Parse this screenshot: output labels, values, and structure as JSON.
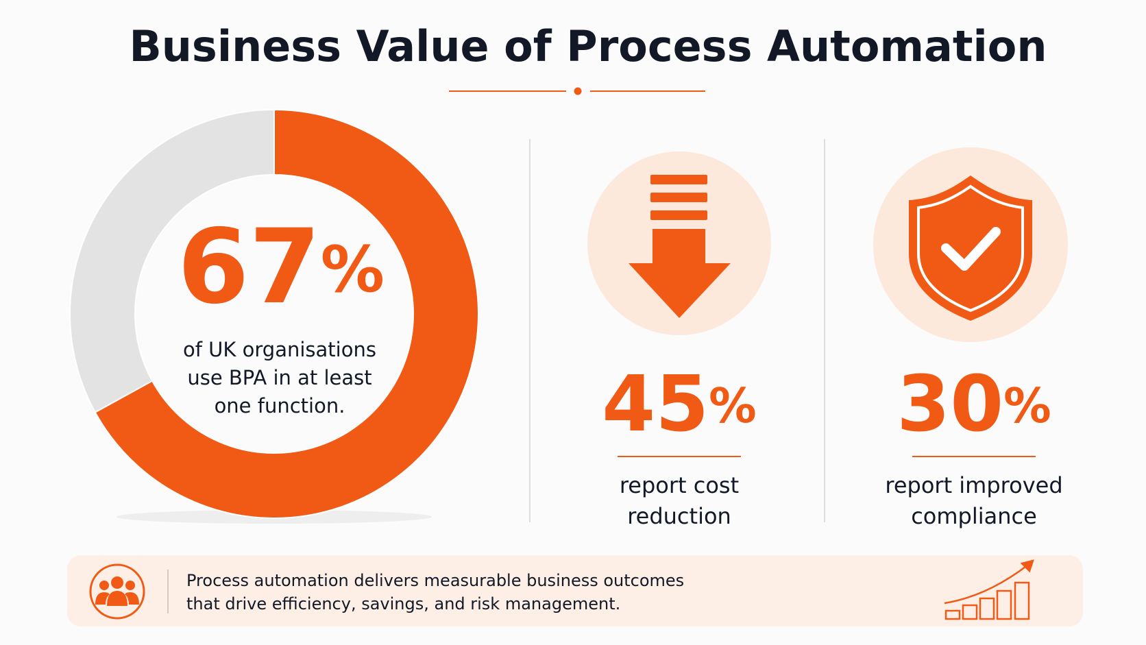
{
  "title": "Business Value of Process Automation",
  "donut": {
    "value": 67,
    "label": "67%",
    "caption": [
      "of UK organisations",
      "use BPA in at least",
      "one function."
    ]
  },
  "stats": [
    {
      "label": "45%",
      "caption": [
        "report cost",
        "reduction"
      ]
    },
    {
      "label": "30%",
      "caption": [
        "report improved",
        "compliance"
      ]
    }
  ],
  "footer": {
    "lines": [
      "Process automation delivers measurable business outcomes",
      "that drive efficiency, savings, and risk management."
    ]
  }
}
